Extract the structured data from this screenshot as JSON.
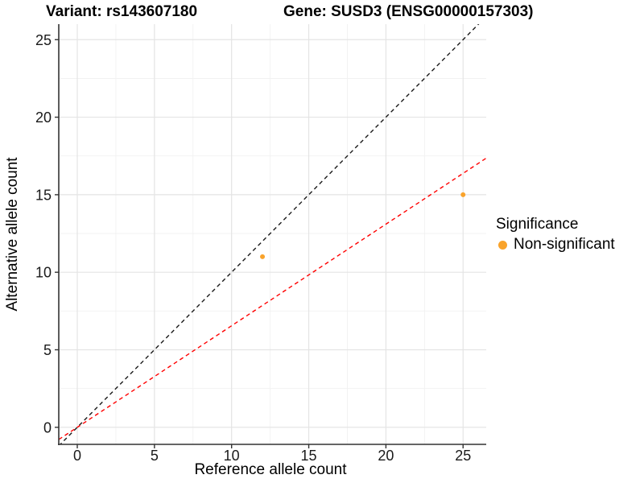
{
  "titles": {
    "variant": "Variant: rs143607180",
    "gene": "Gene: SUSD3 (ENSG00000157303)"
  },
  "chart_data": {
    "type": "scatter",
    "title_left": "Variant: rs143607180",
    "title_right": "Gene: SUSD3 (ENSG00000157303)",
    "xlabel": "Reference allele count",
    "ylabel": "Alternative allele count",
    "xlim": [
      -1.2,
      26.5
    ],
    "ylim": [
      -1.1,
      26.0
    ],
    "x_ticks": [
      0,
      5,
      10,
      15,
      20,
      25
    ],
    "y_ticks": [
      0,
      5,
      10,
      15,
      20,
      25
    ],
    "x_minor_ticks": [
      2.5,
      7.5,
      12.5,
      17.5,
      22.5
    ],
    "y_minor_ticks": [
      2.5,
      7.5,
      12.5,
      17.5,
      22.5
    ],
    "grid": true,
    "points": [
      {
        "x": 12,
        "y": 11,
        "series": "Non-significant"
      },
      {
        "x": 25,
        "y": 15,
        "series": "Non-significant"
      }
    ],
    "lines": [
      {
        "name": "identity",
        "slope": 1.0,
        "intercept": 0,
        "style": "dashed",
        "color": "#1a1a1a"
      },
      {
        "name": "fit",
        "slope": 0.655,
        "intercept": 0,
        "style": "dashed",
        "color": "#ff0000"
      }
    ],
    "legend": {
      "title": "Significance",
      "position": "right",
      "items": [
        {
          "label": "Non-significant",
          "color": "#F9A32B"
        }
      ]
    },
    "colors": {
      "point": "#F9A32B",
      "grid_major": "#e4e4e4",
      "grid_minor": "#f1f1f1",
      "axis": "#333333",
      "tick_label": "#1a1a1a"
    }
  }
}
